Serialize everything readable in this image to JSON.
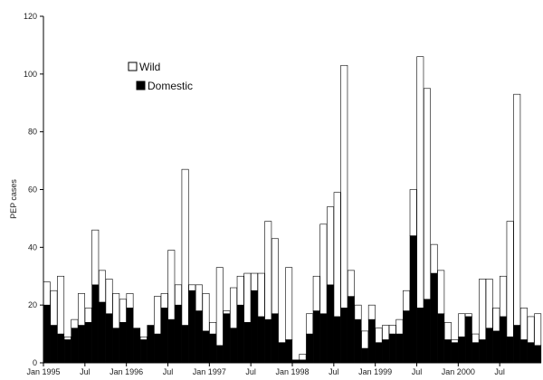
{
  "chart_data": {
    "type": "bar",
    "stacked": true,
    "title": "",
    "xlabel": "",
    "ylabel": "PEP cases",
    "ylim": [
      0,
      120
    ],
    "y_ticks": [
      0,
      20,
      40,
      60,
      80,
      100,
      120
    ],
    "grid": false,
    "legend_position": "top-left",
    "x_tick_labels": [
      {
        "index": 0,
        "label": "Jan 1995"
      },
      {
        "index": 6,
        "label": "Jul"
      },
      {
        "index": 12,
        "label": "Jan 1996"
      },
      {
        "index": 18,
        "label": "Jul"
      },
      {
        "index": 24,
        "label": "Jan 1997"
      },
      {
        "index": 30,
        "label": "Jul"
      },
      {
        "index": 36,
        "label": "Jan 1998"
      },
      {
        "index": 42,
        "label": "Jul"
      },
      {
        "index": 48,
        "label": "Jan 1999"
      },
      {
        "index": 54,
        "label": "Jul"
      },
      {
        "index": 60,
        "label": "Jan 2000"
      },
      {
        "index": 66,
        "label": "Jul"
      }
    ],
    "series": [
      {
        "name": "Domestic",
        "color": "#000000",
        "values": [
          20,
          13,
          10,
          8,
          12,
          13,
          14,
          27,
          21,
          17,
          12,
          14,
          19,
          12,
          8,
          13,
          10,
          19,
          15,
          20,
          13,
          25,
          18,
          11,
          10,
          6,
          17,
          12,
          20,
          14,
          25,
          16,
          15,
          17,
          7,
          8,
          1,
          1,
          10,
          18,
          17,
          27,
          16,
          19,
          23,
          15,
          5,
          15,
          7,
          8,
          10,
          10,
          18,
          44,
          19,
          22,
          31,
          17,
          8,
          7,
          9,
          16,
          7,
          8,
          12,
          11,
          16,
          9,
          13,
          8,
          7,
          6
        ]
      },
      {
        "name": "Wild",
        "color": "#ffffff",
        "values": [
          8,
          12,
          20,
          1,
          3,
          11,
          5,
          19,
          11,
          12,
          12,
          8,
          5,
          0,
          1,
          0,
          13,
          5,
          24,
          7,
          54,
          2,
          9,
          13,
          4,
          27,
          1,
          14,
          10,
          17,
          6,
          15,
          34,
          26,
          0,
          25,
          0,
          2,
          7,
          12,
          31,
          27,
          43,
          84,
          9,
          5,
          6,
          5,
          5,
          5,
          3,
          5,
          7,
          16,
          87,
          73,
          10,
          15,
          6,
          1,
          8,
          1,
          3,
          21,
          17,
          8,
          14,
          40,
          80,
          11,
          9,
          11
        ]
      }
    ]
  },
  "legend": {
    "items": [
      {
        "label": "Wild",
        "swatch": "#ffffff"
      },
      {
        "label": "Domestic",
        "swatch": "#000000"
      }
    ]
  }
}
